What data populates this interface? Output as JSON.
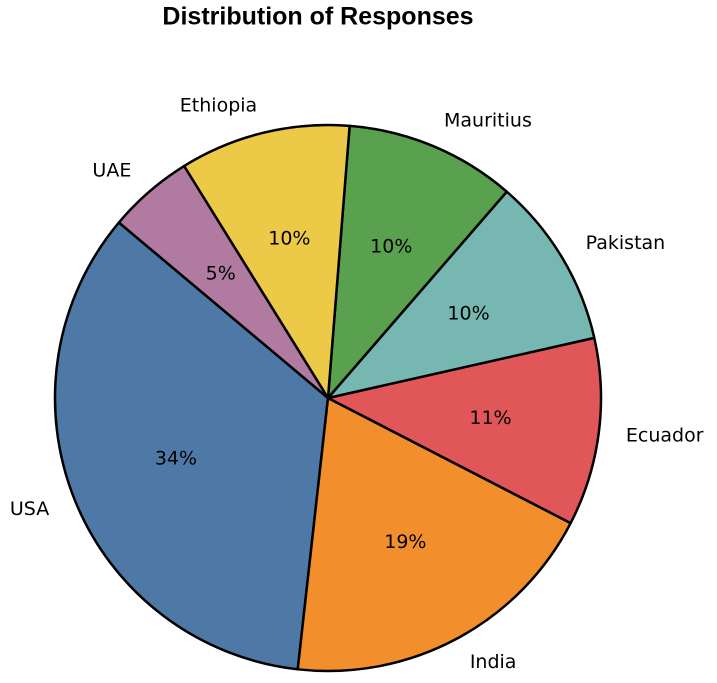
{
  "chart_data": {
    "type": "pie",
    "title": "Distribution of Responses",
    "categories": [
      "USA",
      "India",
      "Ecuador",
      "Pakistan",
      "Mauritius",
      "Ethiopia",
      "UAE"
    ],
    "values": [
      34,
      19,
      11,
      10,
      10,
      10,
      5
    ],
    "value_labels": [
      "34%",
      "19%",
      "11%",
      "10%",
      "10%",
      "10%",
      "5%"
    ],
    "colors": [
      "#4e79a7",
      "#f28e2b",
      "#e15759",
      "#76b7b2",
      "#59a14f",
      "#edc948",
      "#b07aa1"
    ]
  }
}
